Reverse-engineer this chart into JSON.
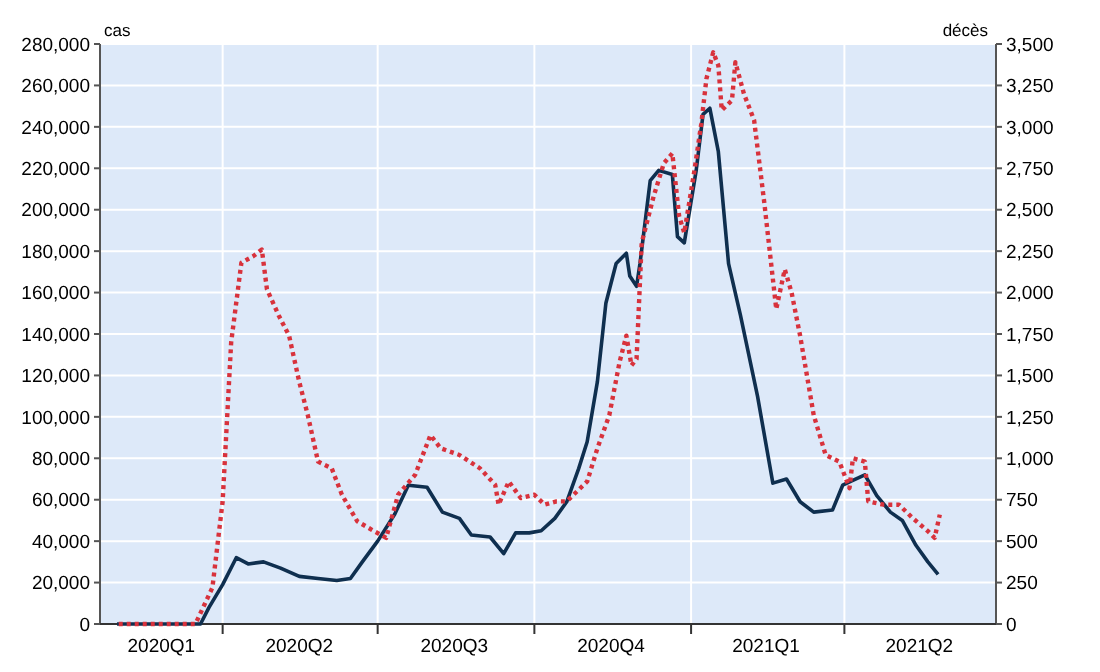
{
  "chart_data": {
    "type": "line",
    "ylabel": "cas",
    "y2label": "décès",
    "xlim": [
      "2020-01-20",
      "2021-06-29"
    ],
    "xticks": [
      {
        "value": "2020-02-25",
        "label": "2020Q1"
      },
      {
        "value": "2020-04-01",
        "label": null
      },
      {
        "value": "2020-05-16",
        "label": "2020Q2"
      },
      {
        "value": "2020-07-01",
        "label": null
      },
      {
        "value": "2020-08-15",
        "label": "2020Q3"
      },
      {
        "value": "2020-10-01",
        "label": null
      },
      {
        "value": "2020-11-15",
        "label": "2020Q4"
      },
      {
        "value": "2021-01-01",
        "label": null
      },
      {
        "value": "2021-02-14",
        "label": "2021Q1"
      },
      {
        "value": "2021-04-01",
        "label": null
      },
      {
        "value": "2021-05-15",
        "label": "2021Q2"
      }
    ],
    "ylim": [
      0,
      280000
    ],
    "yticks": [
      {
        "value": 0,
        "label": "0"
      },
      {
        "value": 20000,
        "label": "20,000"
      },
      {
        "value": 40000,
        "label": "40,000"
      },
      {
        "value": 60000,
        "label": "60,000"
      },
      {
        "value": 80000,
        "label": "80,000"
      },
      {
        "value": 100000,
        "label": "100,000"
      },
      {
        "value": 120000,
        "label": "120,000"
      },
      {
        "value": 140000,
        "label": "140,000"
      },
      {
        "value": 160000,
        "label": "160,000"
      },
      {
        "value": 180000,
        "label": "180,000"
      },
      {
        "value": 200000,
        "label": "200,000"
      },
      {
        "value": 220000,
        "label": "220,000"
      },
      {
        "value": 240000,
        "label": "240,000"
      },
      {
        "value": 260000,
        "label": "260,000"
      },
      {
        "value": 280000,
        "label": "280,000"
      }
    ],
    "y2lim": [
      0,
      3500
    ],
    "y2ticks": [
      {
        "value": 0,
        "label": "0"
      },
      {
        "value": 250,
        "label": "250"
      },
      {
        "value": 500,
        "label": "500"
      },
      {
        "value": 750,
        "label": "750"
      },
      {
        "value": 1000,
        "label": "1,000"
      },
      {
        "value": 1250,
        "label": "1,250"
      },
      {
        "value": 1500,
        "label": "1,500"
      },
      {
        "value": 1750,
        "label": "1,750"
      },
      {
        "value": 2000,
        "label": "2,000"
      },
      {
        "value": 2250,
        "label": "2,250"
      },
      {
        "value": 2500,
        "label": "2,500"
      },
      {
        "value": 2750,
        "label": "2,750"
      },
      {
        "value": 3000,
        "label": "3,000"
      },
      {
        "value": 3250,
        "label": "3,250"
      },
      {
        "value": 3500,
        "label": "3,500"
      }
    ],
    "grid": true,
    "marker": "none",
    "series": [
      {
        "color": "#0f2f4f",
        "line_style": "solid",
        "x": [
          "2020-01-30",
          "2020-03-19",
          "2020-03-24",
          "2020-04-01",
          "2020-04-09",
          "2020-04-16",
          "2020-04-25",
          "2020-05-05",
          "2020-05-16",
          "2020-05-27",
          "2020-06-07",
          "2020-06-15",
          "2020-06-22",
          "2020-07-01",
          "2020-07-11",
          "2020-07-19",
          "2020-07-30",
          "2020-08-08",
          "2020-08-18",
          "2020-08-25",
          "2020-09-05",
          "2020-09-13",
          "2020-09-20",
          "2020-09-28",
          "2020-10-05",
          "2020-10-13",
          "2020-10-20",
          "2020-10-27",
          "2020-11-01",
          "2020-11-07",
          "2020-11-12",
          "2020-11-18",
          "2020-11-24",
          "2020-11-26",
          "2020-11-30",
          "2020-12-02",
          "2020-12-08",
          "2020-12-13",
          "2020-12-21",
          "2020-12-24",
          "2020-12-28",
          "2021-01-04",
          "2021-01-08",
          "2021-01-12",
          "2021-01-17",
          "2021-01-23",
          "2021-01-30",
          "2021-02-09",
          "2021-02-18",
          "2021-02-26",
          "2021-03-06",
          "2021-03-14",
          "2021-03-25",
          "2021-03-31",
          "2021-04-05",
          "2021-04-13",
          "2021-04-20",
          "2021-04-28",
          "2021-05-05",
          "2021-05-13",
          "2021-05-20",
          "2021-05-26"
        ],
        "values": [
          0,
          0,
          8000,
          19000,
          32000,
          29000,
          30000,
          27000,
          23000,
          22000,
          21000,
          22000,
          30000,
          40000,
          53000,
          67000,
          66000,
          54000,
          51000,
          43000,
          42000,
          34000,
          44000,
          44000,
          45000,
          51000,
          59000,
          75000,
          88000,
          117000,
          155000,
          174000,
          179000,
          168000,
          163000,
          174000,
          214000,
          219000,
          217000,
          187000,
          184000,
          219000,
          246000,
          249000,
          228000,
          174000,
          149000,
          110000,
          68000,
          70000,
          59000,
          54000,
          55000,
          67000,
          69000,
          72000,
          62000,
          54000,
          50000,
          38000,
          30000,
          24000
        ]
      },
      {
        "color": "#d8323c",
        "line_style": "dotted",
        "axis": "y2",
        "x": [
          "2020-01-31",
          "2020-03-16",
          "2020-03-26",
          "2020-04-01",
          "2020-04-06",
          "2020-04-12",
          "2020-04-19",
          "2020-04-24",
          "2020-04-27",
          "2020-05-04",
          "2020-05-10",
          "2020-05-16",
          "2020-05-21",
          "2020-05-27",
          "2020-06-04",
          "2020-06-10",
          "2020-06-19",
          "2020-06-29",
          "2020-07-06",
          "2020-07-13",
          "2020-07-23",
          "2020-08-01",
          "2020-08-07",
          "2020-08-18",
          "2020-08-30",
          "2020-09-08",
          "2020-09-10",
          "2020-09-16",
          "2020-09-23",
          "2020-10-01",
          "2020-10-07",
          "2020-10-14",
          "2020-10-20",
          "2020-11-01",
          "2020-11-07",
          "2020-11-14",
          "2020-11-20",
          "2020-11-24",
          "2020-11-27",
          "2020-11-30",
          "2020-12-03",
          "2020-12-10",
          "2020-12-16",
          "2020-12-21",
          "2020-12-25",
          "2020-12-28",
          "2021-01-03",
          "2021-01-07",
          "2021-01-10",
          "2021-01-14",
          "2021-01-17",
          "2021-01-19",
          "2021-01-25",
          "2021-01-27",
          "2021-02-01",
          "2021-02-07",
          "2021-02-13",
          "2021-02-20",
          "2021-02-25",
          "2021-03-01",
          "2021-03-06",
          "2021-03-14",
          "2021-03-21",
          "2021-03-29",
          "2021-04-04",
          "2021-04-06",
          "2021-04-13",
          "2021-04-15",
          "2021-04-24",
          "2021-05-03",
          "2021-05-11",
          "2021-05-20",
          "2021-05-24",
          "2021-05-27"
        ],
        "values": [
          0,
          0,
          220,
          740,
          1700,
          2180,
          2220,
          2260,
          2020,
          1860,
          1740,
          1460,
          1260,
          980,
          940,
          780,
          620,
          560,
          520,
          780,
          900,
          1140,
          1060,
          1020,
          940,
          840,
          720,
          860,
          760,
          780,
          720,
          740,
          740,
          860,
          1060,
          1260,
          1580,
          1740,
          1560,
          1600,
          2300,
          2580,
          2780,
          2840,
          2460,
          2360,
          2740,
          3020,
          3290,
          3450,
          3370,
          3100,
          3160,
          3390,
          3200,
          3040,
          2540,
          1900,
          2140,
          2000,
          1740,
          1260,
          1020,
          980,
          820,
          1000,
          980,
          740,
          720,
          720,
          640,
          560,
          520,
          660
        ]
      }
    ]
  }
}
